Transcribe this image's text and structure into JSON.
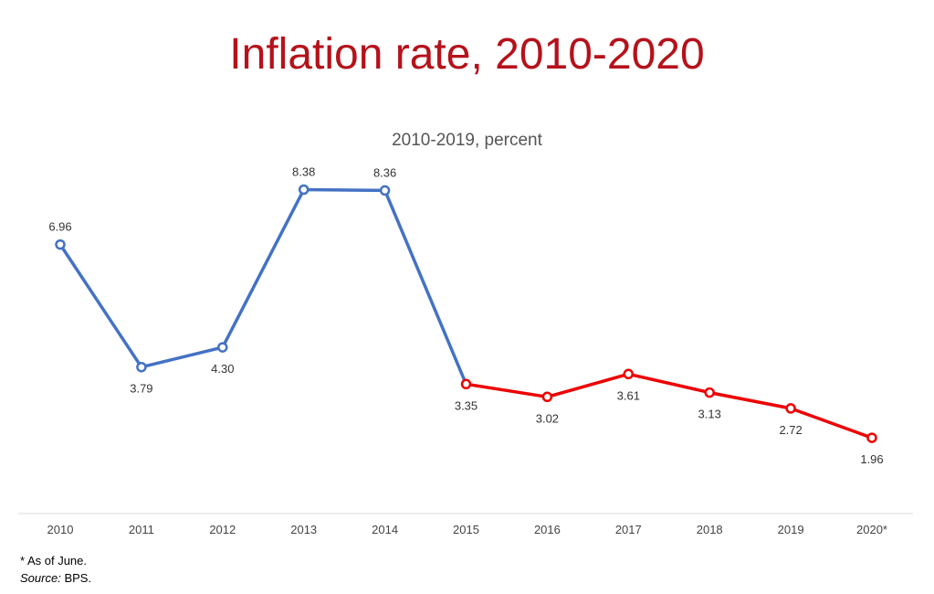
{
  "title": "Inflation rate, 2010-2020",
  "subtitle": "2010-2019, percent",
  "footnote": "* As of June.",
  "source_label": "Source:",
  "source_value": "BPS.",
  "colors": {
    "title": "#b5121b",
    "series_a": "#4472c4",
    "series_b": "#ee0000",
    "axis": "#d9d9d9"
  },
  "chart_data": {
    "type": "line",
    "categories": [
      "2010",
      "2011",
      "2012",
      "2013",
      "2014",
      "2015",
      "2016",
      "2017",
      "2018",
      "2019",
      "2020*"
    ],
    "values": [
      6.96,
      3.79,
      4.3,
      8.38,
      8.36,
      3.35,
      3.02,
      3.61,
      3.13,
      2.72,
      1.96
    ],
    "data_labels": [
      "6.96",
      "3.79",
      "4.30",
      "8.38",
      "8.36",
      "3.35",
      "3.02",
      "3.61",
      "3.13",
      "2.72",
      "1.96"
    ],
    "label_positions": [
      "above",
      "below",
      "below",
      "above",
      "above",
      "below",
      "below",
      "below",
      "below",
      "below",
      "below"
    ],
    "segments": [
      {
        "from": 0,
        "to": 5,
        "color": "#4472c4"
      },
      {
        "from": 5,
        "to": 10,
        "color": "#ee0000"
      }
    ],
    "marker_colors": [
      "#4472c4",
      "#4472c4",
      "#4472c4",
      "#4472c4",
      "#4472c4",
      "#ee0000",
      "#ee0000",
      "#ee0000",
      "#ee0000",
      "#ee0000",
      "#ee0000"
    ],
    "ylim": [
      0,
      10
    ],
    "grid": false,
    "legend": "none"
  }
}
